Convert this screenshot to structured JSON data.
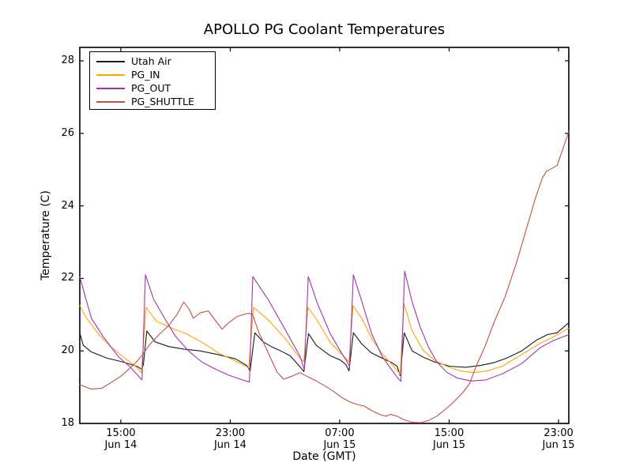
{
  "chart_data": {
    "type": "line",
    "title": "APOLLO PG Coolant Temperatures",
    "xlabel": "Date (GMT)",
    "ylabel": "Temperature (C)",
    "x_unit_note": "t = hours after Jun 14 12:00 GMT (visible axis span)",
    "xlim": [
      0,
      35.75
    ],
    "ylim": [
      18,
      28.37
    ],
    "grid": false,
    "legend_position": "upper left",
    "x_ticks": [
      {
        "t": 3,
        "time": "15:00",
        "date": "Jun 14"
      },
      {
        "t": 11,
        "time": "23:00",
        "date": "Jun 14"
      },
      {
        "t": 19,
        "time": "07:00",
        "date": "Jun 15"
      },
      {
        "t": 27,
        "time": "15:00",
        "date": "Jun 15"
      },
      {
        "t": 35,
        "time": "23:00",
        "date": "Jun 15"
      }
    ],
    "y_ticks": [
      18,
      20,
      22,
      24,
      26,
      28
    ],
    "series": [
      {
        "name": "Utah Air",
        "color": "#1a1a1a",
        "points": [
          [
            0,
            20.5
          ],
          [
            0.25,
            20.16
          ],
          [
            0.8,
            19.98
          ],
          [
            2.0,
            19.8
          ],
          [
            3.1,
            19.7
          ],
          [
            4.2,
            19.57
          ],
          [
            4.5,
            19.5
          ],
          [
            4.65,
            19.62
          ],
          [
            4.9,
            20.55
          ],
          [
            5.5,
            20.25
          ],
          [
            6.5,
            20.12
          ],
          [
            7.6,
            20.05
          ],
          [
            8.8,
            20.0
          ],
          [
            10.1,
            19.9
          ],
          [
            11.4,
            19.78
          ],
          [
            12.2,
            19.6
          ],
          [
            12.45,
            19.45
          ],
          [
            12.8,
            20.5
          ],
          [
            13.4,
            20.25
          ],
          [
            14.0,
            20.12
          ],
          [
            14.7,
            20.0
          ],
          [
            15.4,
            19.86
          ],
          [
            16.1,
            19.56
          ],
          [
            16.38,
            19.43
          ],
          [
            16.72,
            20.48
          ],
          [
            17.3,
            20.15
          ],
          [
            18.3,
            19.87
          ],
          [
            19.05,
            19.75
          ],
          [
            19.45,
            19.62
          ],
          [
            19.68,
            19.45
          ],
          [
            20.0,
            20.5
          ],
          [
            20.6,
            20.2
          ],
          [
            21.3,
            19.95
          ],
          [
            22.1,
            19.8
          ],
          [
            22.8,
            19.68
          ],
          [
            23.2,
            19.58
          ],
          [
            23.42,
            19.32
          ],
          [
            23.72,
            20.5
          ],
          [
            24.3,
            20.0
          ],
          [
            25.1,
            19.83
          ],
          [
            25.9,
            19.7
          ],
          [
            27.0,
            19.58
          ],
          [
            28.2,
            19.55
          ],
          [
            29.3,
            19.6
          ],
          [
            30.3,
            19.68
          ],
          [
            31.2,
            19.8
          ],
          [
            32.3,
            20.0
          ],
          [
            33.4,
            20.3
          ],
          [
            34.2,
            20.45
          ],
          [
            34.9,
            20.5
          ],
          [
            35.75,
            20.78
          ]
        ]
      },
      {
        "name": "PG_IN",
        "color": "#ffa500",
        "points": [
          [
            0,
            21.25
          ],
          [
            0.5,
            20.9
          ],
          [
            1.4,
            20.45
          ],
          [
            2.3,
            20.1
          ],
          [
            3.2,
            19.83
          ],
          [
            4.0,
            19.6
          ],
          [
            4.5,
            19.4
          ],
          [
            4.85,
            21.2
          ],
          [
            5.6,
            20.82
          ],
          [
            6.8,
            20.62
          ],
          [
            7.9,
            20.45
          ],
          [
            9.1,
            20.2
          ],
          [
            10.2,
            19.93
          ],
          [
            11.4,
            19.72
          ],
          [
            12.35,
            19.53
          ],
          [
            12.7,
            21.2
          ],
          [
            13.8,
            20.85
          ],
          [
            15.0,
            20.35
          ],
          [
            16.0,
            19.85
          ],
          [
            16.38,
            19.7
          ],
          [
            16.68,
            21.2
          ],
          [
            17.35,
            20.85
          ],
          [
            18.3,
            20.24
          ],
          [
            19.05,
            19.95
          ],
          [
            19.68,
            19.7
          ],
          [
            19.98,
            21.25
          ],
          [
            20.65,
            20.88
          ],
          [
            21.4,
            20.3
          ],
          [
            22.2,
            19.88
          ],
          [
            22.9,
            19.6
          ],
          [
            23.42,
            19.36
          ],
          [
            23.7,
            21.3
          ],
          [
            24.3,
            20.55
          ],
          [
            25.1,
            20.02
          ],
          [
            25.9,
            19.75
          ],
          [
            26.8,
            19.58
          ],
          [
            27.8,
            19.45
          ],
          [
            28.8,
            19.4
          ],
          [
            29.8,
            19.45
          ],
          [
            30.9,
            19.58
          ],
          [
            32.3,
            19.9
          ],
          [
            33.7,
            20.22
          ],
          [
            34.7,
            20.4
          ],
          [
            35.75,
            20.62
          ]
        ]
      },
      {
        "name": "PG_OUT",
        "color": "#a333b3",
        "points": [
          [
            0,
            22.05
          ],
          [
            0.4,
            21.5
          ],
          [
            0.85,
            20.9
          ],
          [
            1.7,
            20.4
          ],
          [
            2.8,
            19.85
          ],
          [
            3.7,
            19.55
          ],
          [
            4.3,
            19.3
          ],
          [
            4.55,
            19.2
          ],
          [
            4.8,
            22.1
          ],
          [
            5.4,
            21.42
          ],
          [
            6.2,
            20.9
          ],
          [
            7.0,
            20.4
          ],
          [
            7.95,
            20.0
          ],
          [
            8.9,
            19.7
          ],
          [
            9.9,
            19.5
          ],
          [
            10.9,
            19.33
          ],
          [
            11.9,
            19.2
          ],
          [
            12.4,
            19.14
          ],
          [
            12.65,
            22.05
          ],
          [
            13.8,
            21.4
          ],
          [
            15.0,
            20.6
          ],
          [
            16.1,
            19.85
          ],
          [
            16.42,
            19.48
          ],
          [
            16.7,
            22.05
          ],
          [
            17.35,
            21.33
          ],
          [
            18.3,
            20.48
          ],
          [
            19.05,
            20.0
          ],
          [
            19.55,
            19.7
          ],
          [
            19.72,
            19.57
          ],
          [
            20.0,
            22.1
          ],
          [
            20.65,
            21.33
          ],
          [
            21.35,
            20.46
          ],
          [
            22.1,
            19.85
          ],
          [
            22.8,
            19.48
          ],
          [
            23.25,
            19.25
          ],
          [
            23.48,
            19.16
          ],
          [
            23.75,
            22.2
          ],
          [
            24.3,
            21.35
          ],
          [
            24.9,
            20.65
          ],
          [
            25.5,
            20.1
          ],
          [
            26.1,
            19.7
          ],
          [
            26.8,
            19.42
          ],
          [
            27.6,
            19.25
          ],
          [
            28.6,
            19.17
          ],
          [
            29.7,
            19.2
          ],
          [
            30.9,
            19.37
          ],
          [
            32.3,
            19.65
          ],
          [
            33.7,
            20.1
          ],
          [
            34.6,
            20.28
          ],
          [
            35.75,
            20.45
          ]
        ]
      },
      {
        "name": "PG_SHUTTLE",
        "color": "#bf504b",
        "points": [
          [
            0,
            19.07
          ],
          [
            0.8,
            18.95
          ],
          [
            1.6,
            18.97
          ],
          [
            2.3,
            19.13
          ],
          [
            3.0,
            19.3
          ],
          [
            3.6,
            19.5
          ],
          [
            4.1,
            19.68
          ],
          [
            4.6,
            19.9
          ],
          [
            5.1,
            20.17
          ],
          [
            5.8,
            20.45
          ],
          [
            6.5,
            20.7
          ],
          [
            7.1,
            21.0
          ],
          [
            7.6,
            21.35
          ],
          [
            8.0,
            21.15
          ],
          [
            8.3,
            20.9
          ],
          [
            8.8,
            21.05
          ],
          [
            9.4,
            21.1
          ],
          [
            10.0,
            20.8
          ],
          [
            10.4,
            20.6
          ],
          [
            10.9,
            20.78
          ],
          [
            11.5,
            20.95
          ],
          [
            12.2,
            21.03
          ],
          [
            12.6,
            21.03
          ],
          [
            13.1,
            20.5
          ],
          [
            13.8,
            19.93
          ],
          [
            14.4,
            19.43
          ],
          [
            14.9,
            19.22
          ],
          [
            15.5,
            19.3
          ],
          [
            16.1,
            19.4
          ],
          [
            16.6,
            19.3
          ],
          [
            17.3,
            19.17
          ],
          [
            17.9,
            19.04
          ],
          [
            18.5,
            18.9
          ],
          [
            19.1,
            18.73
          ],
          [
            19.7,
            18.6
          ],
          [
            20.3,
            18.52
          ],
          [
            20.8,
            18.48
          ],
          [
            21.4,
            18.34
          ],
          [
            22.0,
            18.24
          ],
          [
            22.4,
            18.2
          ],
          [
            22.7,
            18.25
          ],
          [
            23.2,
            18.2
          ],
          [
            23.7,
            18.1
          ],
          [
            24.3,
            18.03
          ],
          [
            24.9,
            18.02
          ],
          [
            25.5,
            18.08
          ],
          [
            26.1,
            18.2
          ],
          [
            26.7,
            18.38
          ],
          [
            27.3,
            18.58
          ],
          [
            28.0,
            18.85
          ],
          [
            28.5,
            19.1
          ],
          [
            29.0,
            19.6
          ],
          [
            29.6,
            20.1
          ],
          [
            30.3,
            20.8
          ],
          [
            31.1,
            21.5
          ],
          [
            31.9,
            22.4
          ],
          [
            32.6,
            23.3
          ],
          [
            33.3,
            24.2
          ],
          [
            33.8,
            24.75
          ],
          [
            34.1,
            24.95
          ],
          [
            34.5,
            25.03
          ],
          [
            34.9,
            25.12
          ],
          [
            35.3,
            25.55
          ],
          [
            35.75,
            26.05
          ]
        ]
      }
    ]
  }
}
